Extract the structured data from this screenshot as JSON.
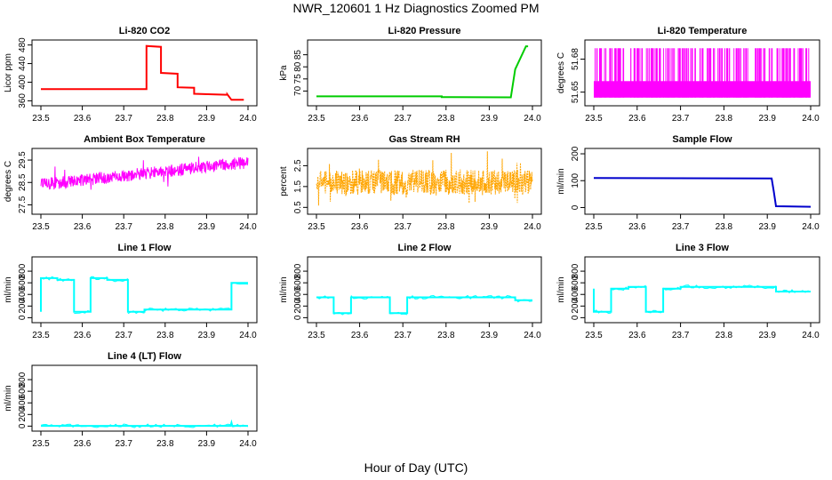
{
  "figure": {
    "title": "NWR_120601  1 Hz Diagnostics Zoomed PM",
    "xlabel": "Hour of Day (UTC)"
  },
  "chart_data": [
    {
      "type": "line",
      "title": "Li-820 CO2",
      "ylabel": "Licor ppm",
      "color": "#ff0000",
      "xlim": [
        23.5,
        24.0
      ],
      "ylim": [
        355,
        485
      ],
      "yticks": [
        360,
        400,
        440,
        480
      ],
      "xticks": [
        23.5,
        23.6,
        23.7,
        23.8,
        23.9,
        24.0
      ],
      "series": [
        {
          "name": "CO2",
          "x": [
            23.5,
            23.7,
            23.755,
            23.755,
            23.79,
            23.79,
            23.83,
            23.83,
            23.87,
            23.87,
            23.95,
            23.95,
            23.96,
            23.99
          ],
          "y": [
            385,
            385,
            385,
            478,
            476,
            420,
            418,
            389,
            388,
            375,
            373,
            374,
            362,
            362
          ]
        }
      ]
    },
    {
      "type": "line",
      "title": "Li-820 Pressure",
      "ylabel": "kPa",
      "color": "#00cc00",
      "xlim": [
        23.5,
        24.0
      ],
      "ylim": [
        65,
        90
      ],
      "yticks": [
        70,
        75,
        80,
        85
      ],
      "xticks": [
        23.5,
        23.6,
        23.7,
        23.8,
        23.9,
        24.0
      ],
      "series": [
        {
          "name": "Pressure",
          "x": [
            23.5,
            23.79,
            23.79,
            23.95,
            23.96,
            23.985,
            23.99
          ],
          "y": [
            67.8,
            67.8,
            67.5,
            67.4,
            79,
            88.5,
            88.5
          ]
        }
      ]
    },
    {
      "type": "line",
      "title": "Li-820 Temperature",
      "ylabel": "degrees C",
      "color": "#ff00ff",
      "xlim": [
        23.5,
        24.0
      ],
      "ylim": [
        51.64,
        51.695
      ],
      "yticks": [
        51.65,
        51.68
      ],
      "xticks": [
        23.5,
        23.6,
        23.7,
        23.8,
        23.9,
        24.0
      ],
      "series": [
        {
          "name": "Temperature",
          "x": [
            23.5,
            24.0
          ],
          "y": [
            51.66,
            51.66
          ],
          "noise": "dense switching between 51.645 and 51.69"
        }
      ]
    },
    {
      "type": "line",
      "title": "Ambient Box Temperature",
      "ylabel": "degrees C",
      "color": "#ff00ff",
      "xlim": [
        23.5,
        24.0
      ],
      "ylim": [
        27.2,
        29.9
      ],
      "yticks": [
        27.5,
        28.5,
        29.5
      ],
      "xticks": [
        23.5,
        23.6,
        23.7,
        23.8,
        23.9,
        24.0
      ],
      "series": [
        {
          "name": "Ambient",
          "x": [
            23.5,
            24.0
          ],
          "y": [
            28.4,
            29.4
          ],
          "noise": "noisy band about 0.4"
        }
      ]
    },
    {
      "type": "line",
      "title": "Gas Stream RH",
      "ylabel": "percent",
      "color": "#ffa500",
      "xlim": [
        23.5,
        24.0
      ],
      "ylim": [
        0.3,
        3.2
      ],
      "yticks": [
        0.5,
        1.5,
        2.5
      ],
      "xticks": [
        23.5,
        23.6,
        23.7,
        23.8,
        23.9,
        24.0
      ],
      "series": [
        {
          "name": "RH",
          "x": [
            23.5,
            24.0
          ],
          "y": [
            1.7,
            1.7
          ],
          "noise": "noisy band 1.1 to 2.3 with spikes"
        }
      ]
    },
    {
      "type": "line",
      "title": "Sample Flow",
      "ylabel": "ml/min",
      "color": "#0000cc",
      "xlim": [
        23.5,
        24.0
      ],
      "ylim": [
        -15,
        210
      ],
      "yticks": [
        0,
        100,
        200
      ],
      "xticks": [
        23.5,
        23.6,
        23.7,
        23.8,
        23.9,
        24.0
      ],
      "series": [
        {
          "name": "Sample Flow",
          "x": [
            23.5,
            23.91,
            23.915,
            23.92,
            24.0
          ],
          "y": [
            110,
            108,
            60,
            5,
            3
          ]
        }
      ]
    },
    {
      "type": "line",
      "title": "Line 1 Flow",
      "ylabel": "ml/min",
      "color": "#00ffff",
      "xlim": [
        23.5,
        24.0
      ],
      "ylim": [
        -40,
        1000
      ],
      "yticks": [
        0,
        200,
        400,
        600,
        800
      ],
      "xticks": [
        23.5,
        23.6,
        23.7,
        23.8,
        23.9,
        24.0
      ],
      "series": [
        {
          "name": "Line 1",
          "x": [
            23.5,
            23.5,
            23.54,
            23.54,
            23.58,
            23.58,
            23.62,
            23.62,
            23.66,
            23.66,
            23.71,
            23.71,
            23.75,
            23.75,
            23.96,
            23.96,
            24.0
          ],
          "y": [
            100,
            680,
            680,
            650,
            650,
            100,
            100,
            680,
            680,
            650,
            650,
            100,
            100,
            140,
            140,
            600,
            600
          ]
        }
      ]
    },
    {
      "type": "line",
      "title": "Line 2 Flow",
      "ylabel": "ml/min",
      "color": "#00ffff",
      "xlim": [
        23.5,
        24.0
      ],
      "ylim": [
        -40,
        1000
      ],
      "yticks": [
        0,
        200,
        400,
        600,
        800
      ],
      "xticks": [
        23.5,
        23.6,
        23.7,
        23.8,
        23.9,
        24.0
      ],
      "series": [
        {
          "name": "Line 2",
          "x": [
            23.5,
            23.54,
            23.54,
            23.58,
            23.58,
            23.67,
            23.67,
            23.71,
            23.71,
            23.96,
            23.96,
            24.0
          ],
          "y": [
            350,
            350,
            80,
            80,
            350,
            350,
            80,
            80,
            350,
            350,
            300,
            300
          ]
        }
      ]
    },
    {
      "type": "line",
      "title": "Line 3 Flow",
      "ylabel": "ml/min",
      "color": "#00ffff",
      "xlim": [
        23.5,
        24.0
      ],
      "ylim": [
        -40,
        1000
      ],
      "yticks": [
        0,
        200,
        400,
        600,
        800
      ],
      "xticks": [
        23.5,
        23.6,
        23.7,
        23.8,
        23.9,
        24.0
      ],
      "series": [
        {
          "name": "Line 3",
          "x": [
            23.5,
            23.5,
            23.54,
            23.54,
            23.58,
            23.58,
            23.62,
            23.62,
            23.66,
            23.66,
            23.7,
            23.7,
            23.92,
            23.92,
            24.0
          ],
          "y": [
            500,
            100,
            100,
            500,
            500,
            530,
            530,
            100,
            100,
            500,
            500,
            530,
            530,
            450,
            450
          ]
        }
      ]
    },
    {
      "type": "line",
      "title": "Line 4 (LT) Flow",
      "ylabel": "ml/min",
      "color": "#00ffff",
      "xlim": [
        23.5,
        24.0
      ],
      "ylim": [
        -40,
        1000
      ],
      "yticks": [
        0,
        200,
        400,
        600,
        800
      ],
      "xticks": [
        23.5,
        23.6,
        23.7,
        23.8,
        23.9,
        24.0
      ],
      "series": [
        {
          "name": "Line 4",
          "x": [
            23.5,
            23.958,
            23.96,
            23.962,
            24.0
          ],
          "y": [
            5,
            5,
            60,
            5,
            5
          ]
        }
      ]
    }
  ]
}
